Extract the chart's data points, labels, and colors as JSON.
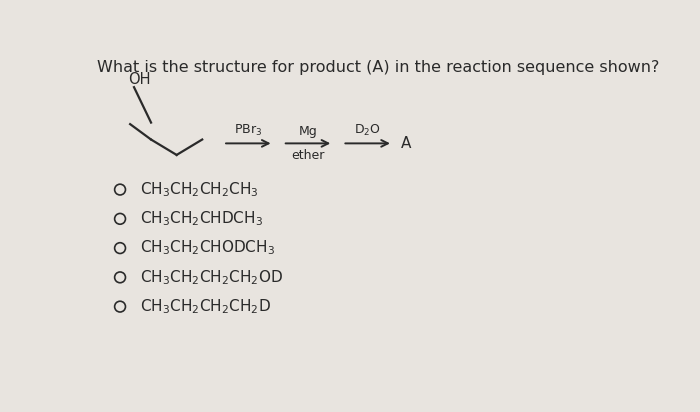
{
  "title": "What is the structure for product (A) in the reaction sequence shown?",
  "title_fontsize": 11.5,
  "background_color": "#e8e4df",
  "text_color": "#2a2a2a",
  "options_raw": [
    "CH$_3$CH$_2$CH$_2$CH$_3$",
    "CH$_3$CH$_2$CHDCH$_3$",
    "CH$_3$CH$_2$CHODCH$_3$",
    "CH$_3$CH$_2$CH$_2$CH$_2$OD",
    "CH$_3$CH$_2$CH$_2$CH$_2$D"
  ],
  "arrow1_label_top": "PBr$_3$",
  "arrow2_label_top": "Mg",
  "arrow2_label_bottom": "ether",
  "arrow3_label_top": "D$_2$O",
  "product_label": "A",
  "oh_label": "OH"
}
